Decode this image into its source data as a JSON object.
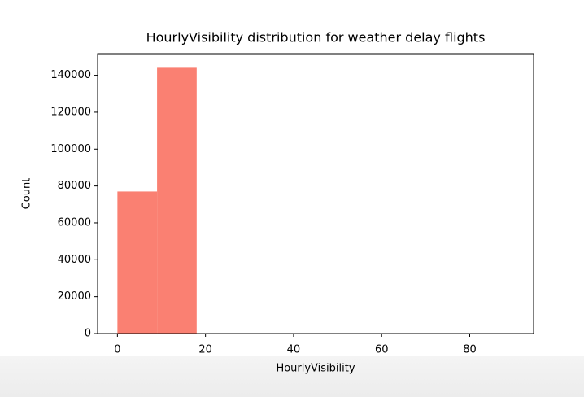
{
  "chart_data": {
    "type": "histogram",
    "title": "HourlyVisibility distribution for weather delay flights",
    "x_label": "HourlyVisibility",
    "y_label": "Count",
    "bins": [
      0,
      9,
      18,
      27,
      36,
      45,
      54,
      63,
      72,
      81,
      90
    ],
    "values": [
      77000,
      144500,
      0,
      0,
      0,
      0,
      0,
      0,
      0,
      0
    ],
    "color": "#fa8072",
    "xlim": [
      -4.5,
      94.5
    ],
    "xticks": [
      0,
      20,
      40,
      60,
      80
    ],
    "ylim": [
      0,
      151725
    ],
    "yticks": [
      0,
      20000,
      40000,
      60000,
      80000,
      100000,
      120000,
      140000
    ]
  }
}
